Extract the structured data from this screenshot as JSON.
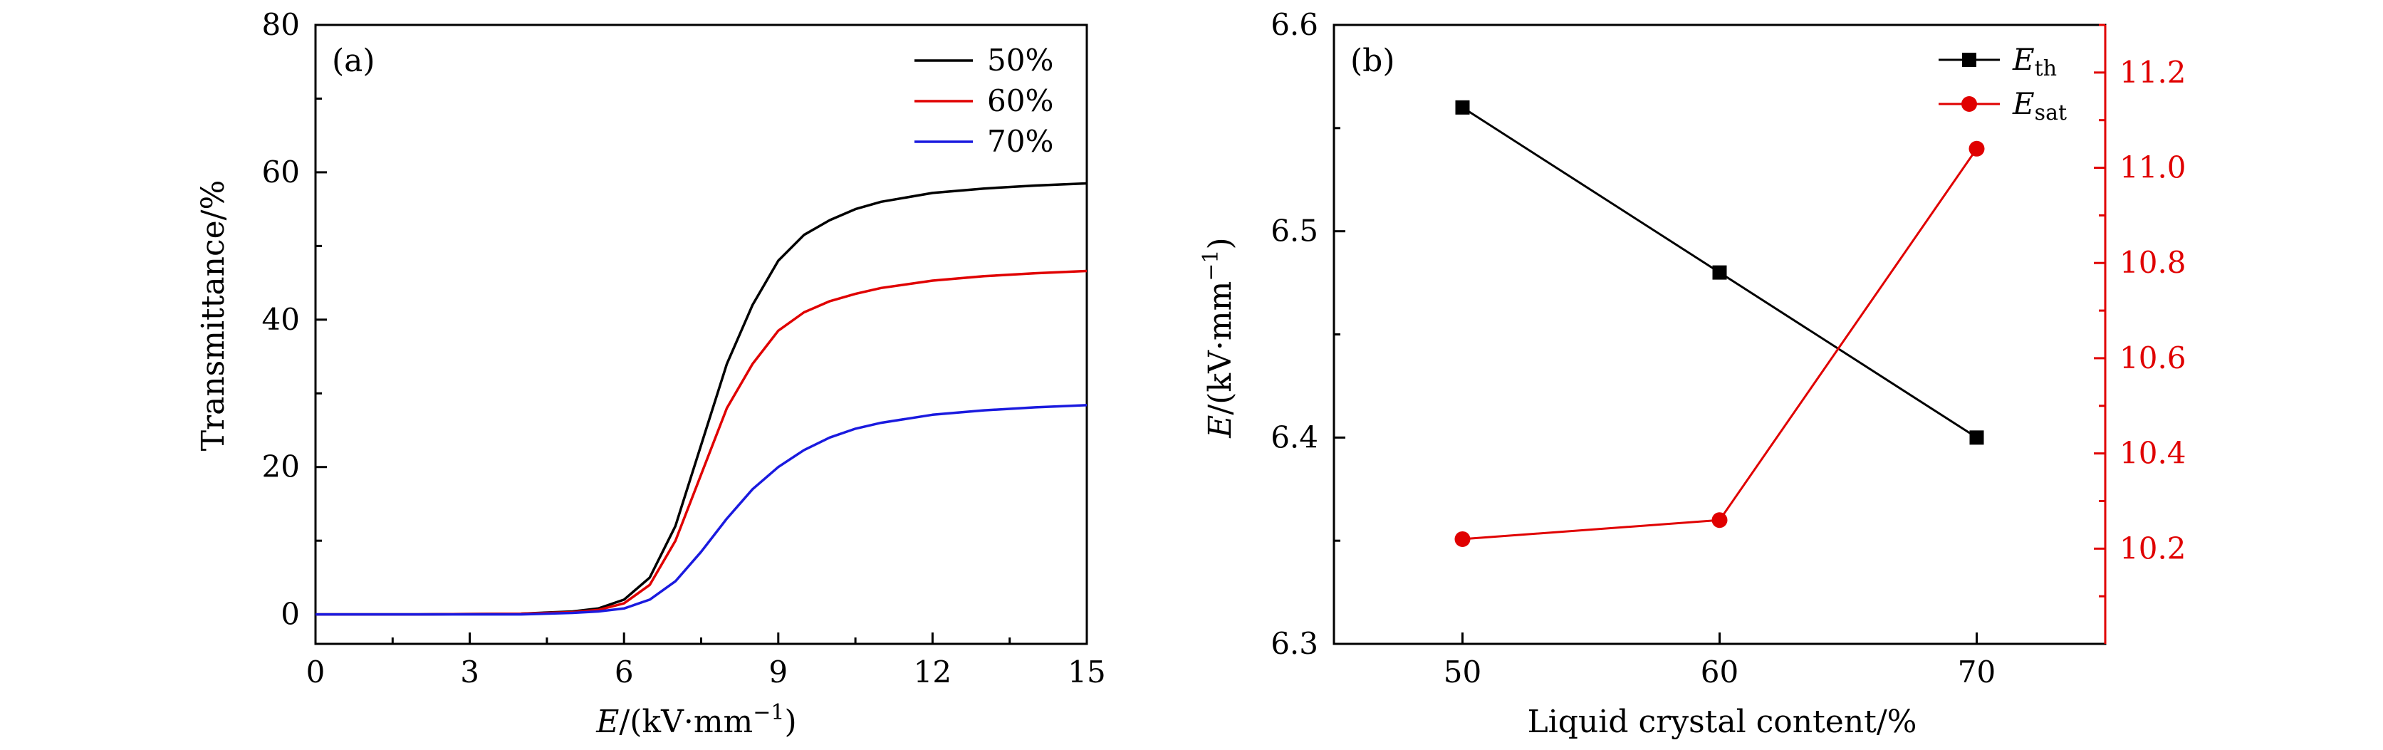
{
  "chart_data": [
    {
      "panel": "(a)",
      "type": "line",
      "xlabel_var": "E",
      "xlabel_unit": "/(kV·mm",
      "xlabel_sup": "−1",
      "xlabel_close": ")",
      "ylabel": "Transmittance/%",
      "xlim": [
        0,
        15
      ],
      "ylim": [
        -4,
        80
      ],
      "xticks": [
        0,
        3,
        6,
        9,
        12,
        15
      ],
      "yticks": [
        0,
        20,
        40,
        60,
        80
      ],
      "legend_position": "top-right",
      "series": [
        {
          "name": "50%",
          "color": "#000000",
          "x": [
            0,
            2,
            4,
            5,
            5.5,
            6,
            6.5,
            7,
            7.5,
            8,
            8.5,
            9,
            9.5,
            10,
            10.5,
            11,
            12,
            13,
            14,
            15
          ],
          "y": [
            0,
            0,
            0.1,
            0.4,
            0.8,
            2,
            5,
            12,
            23,
            34,
            42,
            48,
            51.5,
            53.5,
            55,
            56,
            57.2,
            57.8,
            58.2,
            58.5
          ]
        },
        {
          "name": "60%",
          "color": "#e00000",
          "x": [
            0,
            2,
            4,
            5,
            5.5,
            6,
            6.5,
            7,
            7.5,
            8,
            8.5,
            9,
            9.5,
            10,
            10.5,
            11,
            12,
            13,
            14,
            15
          ],
          "y": [
            0,
            0,
            0.1,
            0.3,
            0.6,
            1.5,
            4,
            10,
            19,
            28,
            34,
            38.5,
            41,
            42.5,
            43.5,
            44.3,
            45.3,
            45.9,
            46.3,
            46.6
          ]
        },
        {
          "name": "70%",
          "color": "#1a1adf",
          "x": [
            0,
            2,
            4,
            5,
            5.5,
            6,
            6.5,
            7,
            7.5,
            8,
            8.5,
            9,
            9.5,
            10,
            10.5,
            11,
            12,
            13,
            14,
            15
          ],
          "y": [
            0,
            0,
            0,
            0.2,
            0.4,
            0.8,
            2,
            4.5,
            8.5,
            13,
            17,
            20,
            22.3,
            24,
            25.2,
            26,
            27.1,
            27.7,
            28.1,
            28.4
          ]
        }
      ]
    },
    {
      "panel": "(b)",
      "type": "line",
      "xlabel": "Liquid crystal content/%",
      "ylabel_var": "E",
      "ylabel_unit": "/(kV·mm",
      "ylabel_sup": "−1",
      "ylabel_close": ")",
      "xlim": [
        45,
        75
      ],
      "ylim_left": [
        6.3,
        6.6
      ],
      "ylim_right": [
        10.0,
        11.3
      ],
      "xticks": [
        50,
        60,
        70
      ],
      "yticks_left": [
        "6.3",
        "6.4",
        "6.5",
        "6.6"
      ],
      "yticks_right": [
        "10.2",
        "10.4",
        "10.6",
        "10.8",
        "11.0",
        "11.2"
      ],
      "legend_position": "top-right",
      "series": [
        {
          "name": "E",
          "sub": "th",
          "axis": "left",
          "marker": "square",
          "color": "#000000",
          "x": [
            50,
            60,
            70
          ],
          "y": [
            6.56,
            6.48,
            6.4
          ]
        },
        {
          "name": "E",
          "sub": "sat",
          "axis": "right",
          "marker": "circle",
          "color": "#e00000",
          "x": [
            50,
            60,
            70
          ],
          "y": [
            10.22,
            10.26,
            11.04
          ]
        }
      ]
    }
  ]
}
